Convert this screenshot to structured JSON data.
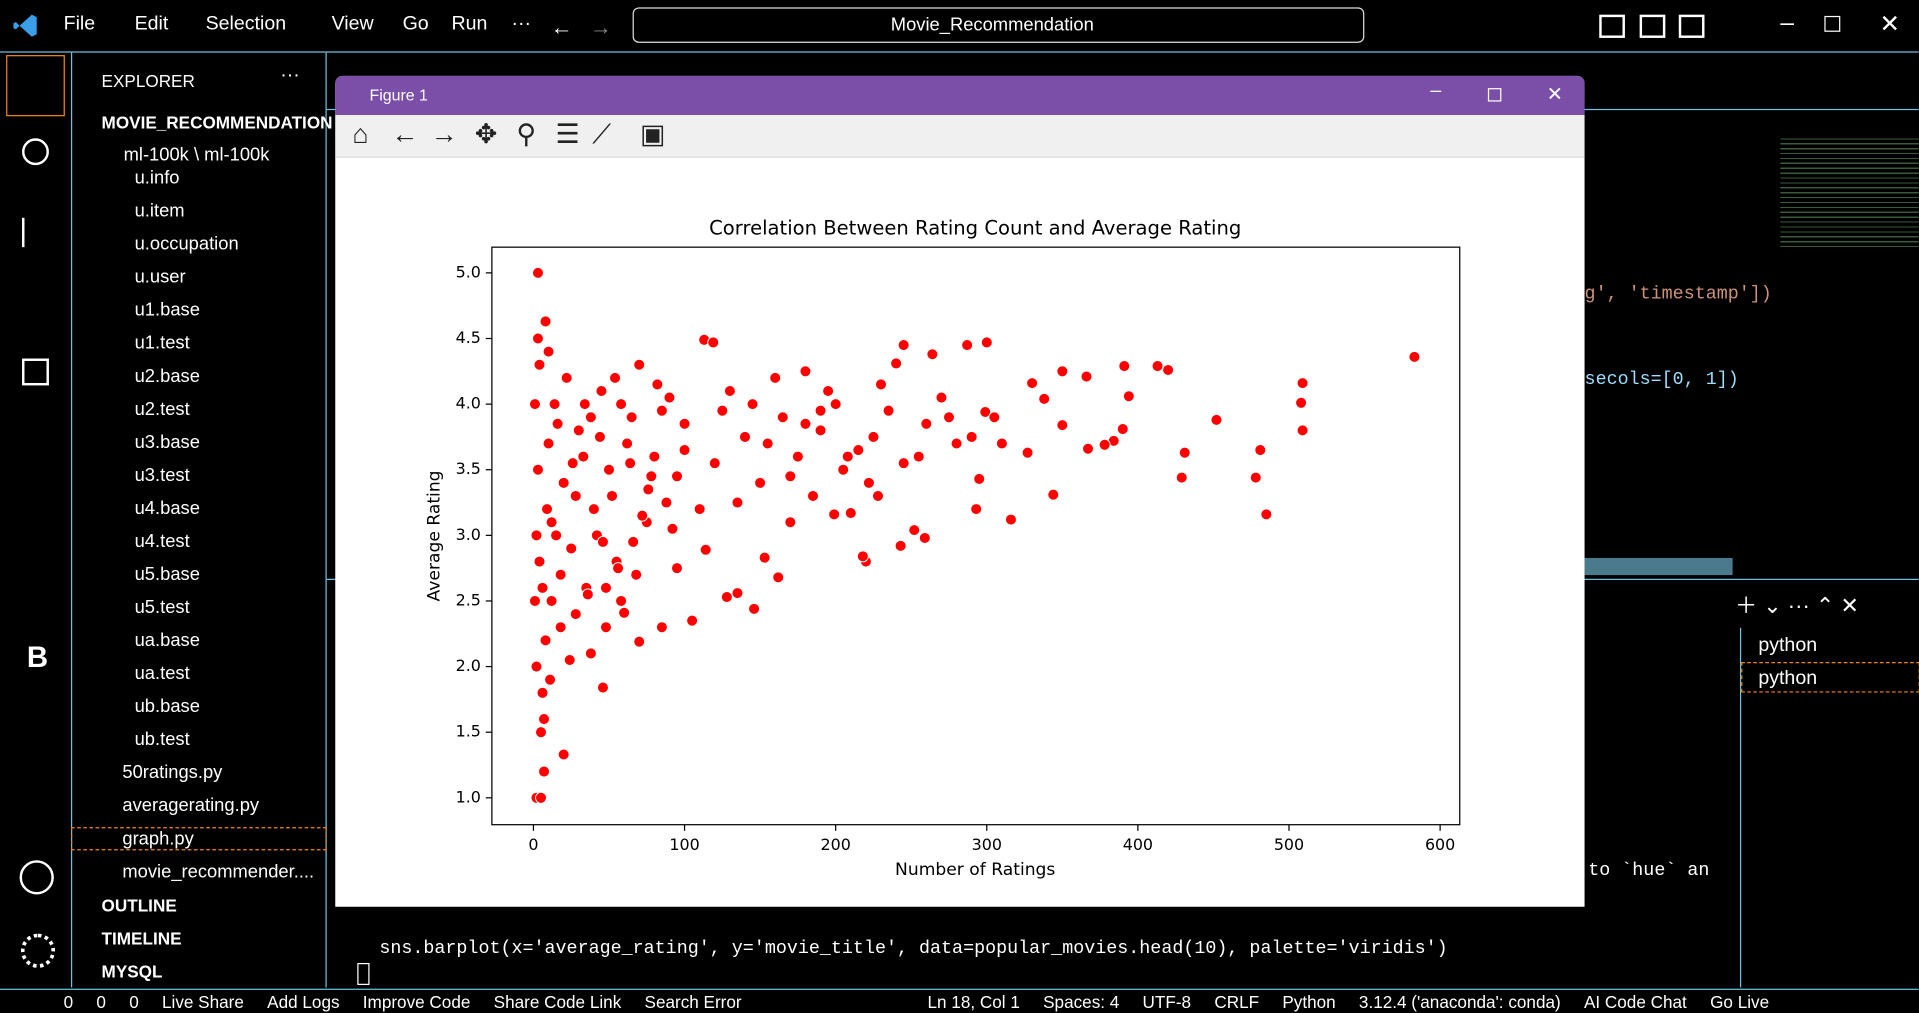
{
  "titlebar": {
    "menu": [
      "File",
      "Edit",
      "Selection",
      "View",
      "Go",
      "Run",
      "···"
    ],
    "search": "Movie_Recommendation"
  },
  "activity_letter": "B",
  "explorer": {
    "header": "EXPLORER",
    "root": "MOVIE_RECOMMENDATION",
    "folder": "ml-100k \\ ml-100k",
    "folder_files": [
      "u.info",
      "u.item",
      "u.occupation",
      "u.user",
      "u1.base",
      "u1.test",
      "u2.base",
      "u2.test",
      "u3.base",
      "u3.test",
      "u4.base",
      "u4.test",
      "u5.base",
      "u5.test",
      "ua.base",
      "ua.test",
      "ub.base",
      "ub.test"
    ],
    "py_files": [
      "50ratings.py",
      "averagerating.py",
      "graph.py",
      "movie_recommender...."
    ],
    "sections": [
      "OUTLINE",
      "TIMELINE",
      "MYSQL"
    ]
  },
  "editor": {
    "lines": [
      "g', 'timestamp'])",
      "secols=[0, 1])",
      "to `hue` an"
    ]
  },
  "terminal": {
    "command": "sns.barplot(x='average_rating', y='movie_title', data=popular_movies.head(10), palette='viridis')",
    "tabs": [
      "python",
      "python"
    ]
  },
  "statusbar": {
    "left": [
      "0",
      "0",
      "0",
      "Live Share",
      "Add Logs",
      "Improve Code",
      "Share Code Link",
      "Search Error"
    ],
    "right": [
      "Ln 18, Col 1",
      "Spaces: 4",
      "UTF-8",
      "CRLF",
      "Python",
      "3.12.4 ('anaconda': conda)",
      "AI Code Chat",
      "Go Live"
    ]
  },
  "figure": {
    "window_title": "Figure 1"
  },
  "chart_data": {
    "type": "scatter",
    "title": "Correlation Between Rating Count and Average Rating",
    "x_label": "Number of Ratings",
    "y_label": "Average Rating",
    "color": "#ff0000",
    "x": [
      583,
      509,
      508,
      509,
      485,
      481,
      478,
      452,
      431,
      429,
      420,
      413,
      394,
      391,
      390,
      384,
      378,
      367,
      366,
      350,
      350,
      344,
      316,
      327,
      338,
      330,
      300,
      295,
      293,
      299,
      287,
      259,
      252,
      243,
      220,
      218,
      228,
      210,
      199,
      240,
      264,
      245,
      170,
      162,
      153,
      146,
      135,
      128,
      114,
      105,
      85,
      70,
      60,
      46,
      20,
      8,
      3,
      2,
      5,
      113,
      119,
      260,
      270,
      280,
      255,
      235,
      225,
      205,
      190,
      180,
      175,
      165,
      150,
      140,
      130,
      120,
      110,
      100,
      95,
      90,
      185,
      200,
      215,
      230,
      245,
      275,
      290,
      310,
      305,
      190,
      160,
      145,
      135,
      125,
      155,
      170,
      180,
      195,
      208,
      222,
      80,
      75,
      65,
      55,
      50,
      45,
      40,
      35,
      30,
      25,
      20,
      15,
      12,
      10,
      8,
      6,
      4,
      3,
      2,
      1,
      70,
      62,
      58,
      52,
      48,
      42,
      38,
      33,
      28,
      22,
      18,
      14,
      11,
      9,
      7,
      5,
      4,
      3,
      2,
      1,
      88,
      78,
      68,
      58,
      48,
      38,
      28,
      18,
      12,
      7,
      95,
      85,
      72,
      66,
      54,
      44,
      36,
      26,
      16,
      6,
      100,
      92,
      82,
      76,
      64,
      56,
      46,
      34,
      24,
      10
    ],
    "values": [
      4.36,
      4.16,
      4.01,
      3.8,
      3.16,
      3.65,
      3.44,
      3.88,
      3.63,
      3.44,
      4.26,
      4.29,
      4.06,
      4.29,
      3.81,
      3.72,
      3.69,
      3.66,
      4.21,
      4.25,
      3.84,
      3.31,
      3.12,
      3.63,
      4.04,
      4.16,
      4.47,
      3.43,
      3.2,
      3.94,
      4.45,
      2.98,
      3.04,
      2.92,
      2.8,
      2.84,
      3.3,
      3.17,
      3.16,
      4.31,
      4.38,
      4.45,
      3.1,
      2.68,
      2.83,
      2.44,
      2.56,
      2.53,
      2.89,
      2.35,
      2.3,
      2.19,
      2.41,
      1.84,
      1.33,
      4.63,
      5.0,
      1.0,
      1.0,
      4.49,
      4.47,
      3.85,
      4.05,
      3.7,
      3.6,
      3.95,
      3.75,
      3.5,
      3.8,
      4.25,
      3.6,
      3.9,
      3.4,
      3.75,
      4.1,
      3.55,
      3.2,
      3.85,
      3.45,
      4.05,
      3.3,
      4.0,
      3.65,
      4.15,
      3.55,
      3.9,
      3.75,
      3.7,
      3.9,
      3.95,
      4.2,
      4.0,
      3.25,
      3.95,
      3.7,
      3.45,
      3.85,
      4.1,
      3.6,
      3.4,
      3.6,
      3.1,
      3.9,
      2.8,
      3.5,
      4.1,
      3.2,
      2.6,
      3.8,
      2.9,
      3.4,
      3.0,
      2.5,
      3.7,
      2.2,
      1.8,
      4.3,
      3.5,
      2.0,
      4.0,
      4.3,
      3.7,
      4.0,
      3.3,
      2.6,
      3.0,
      3.9,
      3.6,
      2.4,
      4.2,
      2.7,
      4.0,
      1.9,
      3.2,
      1.6,
      1.5,
      2.8,
      4.5,
      3.0,
      2.5,
      3.25,
      3.45,
      2.7,
      2.5,
      2.3,
      2.1,
      3.3,
      2.3,
      3.1,
      1.2,
      2.75,
      3.95,
      3.15,
      2.95,
      4.2,
      3.75,
      2.55,
      3.55,
      3.85,
      2.6,
      3.65,
      3.05,
      4.15,
      3.35,
      3.55,
      2.75,
      2.95,
      4.0,
      2.05,
      4.4
    ],
    "xlim": [
      -27.5,
      613
    ],
    "ylim": [
      0.795,
      5.196
    ],
    "xticks": [
      0,
      100,
      200,
      300,
      400,
      500,
      600
    ],
    "yticks": [
      {
        "value": 1,
        "label": "1.0"
      },
      1.5,
      {
        "value": 2,
        "label": "2.0"
      },
      2.5,
      {
        "value": 3,
        "label": "3.0"
      },
      3.5,
      {
        "value": 4,
        "label": "4.0"
      },
      4.5,
      {
        "value": 5,
        "label": "5.0"
      }
    ]
  }
}
